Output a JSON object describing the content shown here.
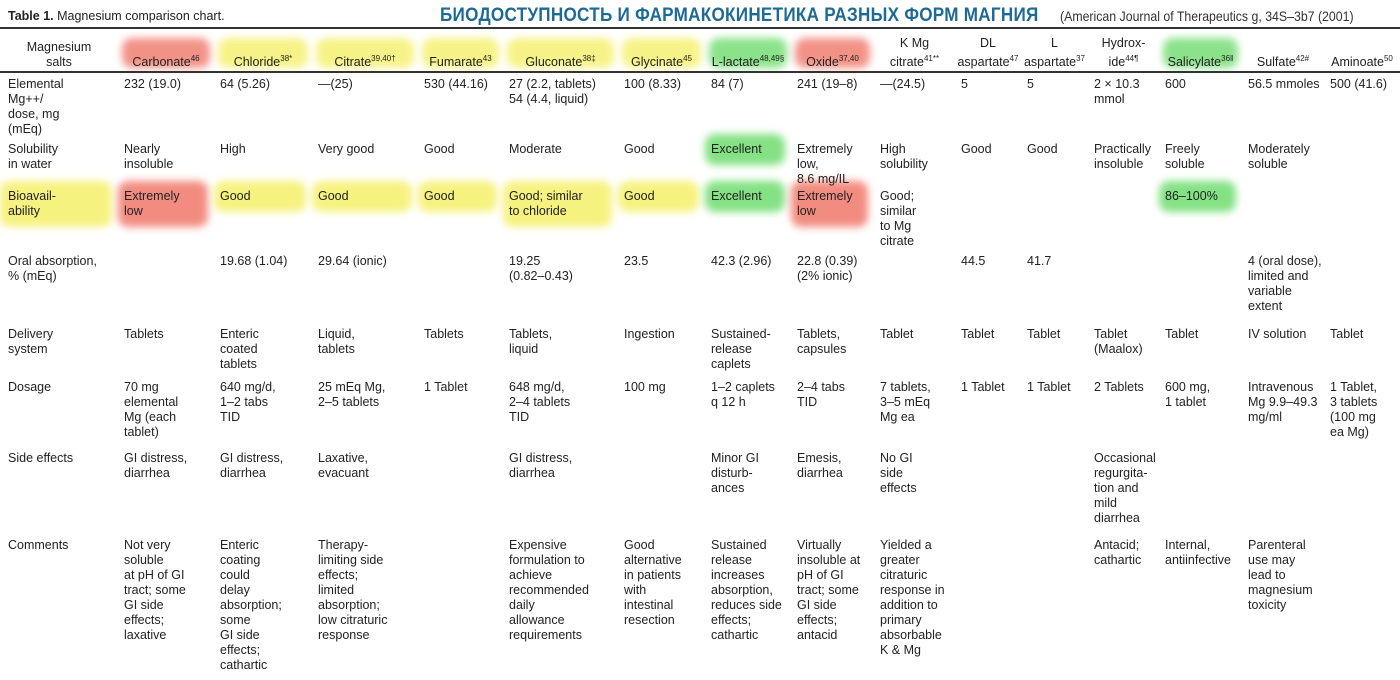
{
  "caption": {
    "label": "Table 1.",
    "text": "Magnesium comparison chart."
  },
  "banner": "БИОДОСТУПНОСТЬ И ФАРМАКОКИНЕТИКА РАЗНЫХ ФОРМ МАГНИЯ",
  "source": "(American Journal of Therapeutics g, 34S–3b7 (2001)",
  "colors": {
    "red": "#f0786a",
    "yellow": "#f5f06a",
    "green": "#6fdc6f"
  },
  "header": {
    "label": "Magnesium\nsalts",
    "columns": [
      {
        "name": "Carbonate",
        "sup": "46"
      },
      {
        "name": "Chloride",
        "sup": "38*"
      },
      {
        "name": "Citrate",
        "sup": "39,40†"
      },
      {
        "name": "Fumarate",
        "sup": "43"
      },
      {
        "name": "Gluconate",
        "sup": "38‡"
      },
      {
        "name": "Glycinate",
        "sup": "45"
      },
      {
        "name": "L-lactate",
        "sup": "48,49§"
      },
      {
        "name": "Oxide",
        "sup": "37,40"
      },
      {
        "name": "K Mg\ncitrate",
        "sup": "41**"
      },
      {
        "name": "DL\naspartate",
        "sup": "47"
      },
      {
        "name": "L\naspartate",
        "sup": "37"
      },
      {
        "name": "Hydrox-\nide",
        "sup": "44¶"
      },
      {
        "name": "Salicylate",
        "sup": "36‖"
      },
      {
        "name": "Sulfate",
        "sup": "42#"
      },
      {
        "name": "Aminoate",
        "sup": "50"
      }
    ]
  },
  "rows": [
    {
      "label": "Elemental\n  Mg++/\n  dose, mg\n  (mEq)",
      "cells": [
        "232 (19.0)",
        "64 (5.26)",
        "—(25)",
        "530 (44.16)",
        "27 (2.2, tablets)\n  54 (4.4, liquid)",
        "100 (8.33)",
        "84 (7)",
        "241 (19–8)",
        "—(24.5)",
        "5",
        "5",
        "2 × 10.3\n  mmol",
        "600",
        "56.5 mmoles",
        "500 (41.6)"
      ]
    },
    {
      "label": "Solubility\n  in water",
      "cells": [
        "Nearly\n  insoluble",
        "High",
        "Very good",
        "Good",
        "Moderate",
        "Good",
        "Excellent",
        "Extremely\n  low,\n  8.6 mg/IL",
        "High\n  solubility",
        "Good",
        "Good",
        "Practically\n  insoluble",
        "Freely\n  soluble",
        "Moderately\n  soluble",
        ""
      ]
    },
    {
      "label": "Bioavail-\n  ability",
      "cells": [
        "Extremely\n  low",
        "Good",
        "Good",
        "Good",
        "Good; similar\n  to chloride",
        "Good",
        "Excellent",
        "Extremely\n  low",
        "Good;\n  similar\n  to Mg\n  citrate",
        "",
        "",
        "",
        "86–100%",
        "",
        ""
      ]
    },
    {
      "label": "Oral absorption,\n  % (mEq)",
      "cells": [
        "",
        "19.68 (1.04)",
        "29.64 (ionic)",
        "",
        "19.25\n  (0.82–0.43)",
        "23.5",
        "42.3 (2.96)",
        "22.8 (0.39)\n  (2% ionic)",
        "",
        "44.5",
        "41.7",
        "",
        "",
        "4 (oral dose),\n  limited and\n  variable\n  extent",
        ""
      ]
    },
    {
      "label": "Delivery\n  system",
      "cells": [
        "Tablets",
        "Enteric\n  coated\n  tablets",
        "Liquid,\n  tablets",
        "Tablets",
        "Tablets,\n  liquid",
        "Ingestion",
        "Sustained-\n  release\n  caplets",
        "Tablets,\n  capsules",
        "Tablet",
        "Tablet",
        "Tablet",
        "Tablet\n  (Maalox)",
        "Tablet",
        "IV solution",
        "Tablet"
      ]
    },
    {
      "label": "Dosage",
      "cells": [
        "70 mg\n  elemental\n  Mg (each\n  tablet)",
        "640 mg/d,\n  1–2 tabs\n  TID",
        "25 mEq Mg,\n  2–5 tablets",
        "1 Tablet",
        "648 mg/d,\n  2–4 tablets\n  TID",
        "100 mg",
        "1–2 caplets\n  q 12 h",
        "2–4 tabs\n  TID",
        "7 tablets,\n  3–5 mEq\n  Mg ea",
        "1 Tablet",
        "1 Tablet",
        "2 Tablets",
        "600 mg,\n  1 tablet",
        "Intravenous\n  Mg 9.9–49.3\n  mg/ml",
        "1 Tablet,\n  3 tablets\n  (100 mg\n  ea Mg)"
      ]
    },
    {
      "label": "Side effects",
      "cells": [
        "GI distress,\n  diarrhea",
        "GI distress,\n  diarrhea",
        "Laxative,\n  evacuant",
        "",
        "GI distress,\n  diarrhea",
        "",
        "Minor GI\n  disturb-\n  ances",
        "Emesis,\n  diarrhea",
        "No GI\n  side\n  effects",
        "",
        "",
        "Occasional\n  regurgita-\n  tion and\n  mild\n  diarrhea",
        "",
        "",
        ""
      ]
    },
    {
      "label": "Comments",
      "cells": [
        "Not very\n  soluble\n  at pH of GI\n  tract; some\n  GI side\n  effects;\n  laxative",
        "Enteric\n  coating\n  could\n  delay\n  absorption;\n  some\n  GI side\n  effects;\n  cathartic",
        "Therapy-\n  limiting side\n  effects;\n  limited\n  absorption;\n  low citraturic\n  response",
        "",
        "Expensive\n  formulation to\n  achieve\n  recommended\n  daily\n  allowance\n  requirements",
        "Good\n  alternative\n  in patients\n  with\n  intestinal\n  resection",
        "Sustained\n  release\n  increases\n  absorption,\n  reduces side\n  effects;\n  cathartic",
        "Virtually\n  insoluble at\n  pH of GI\n  tract; some\n  GI side\n  effects;\n  antacid",
        "Yielded a\n  greater\n  citraturic\n  response in\n  addition to\n  primary\n  absorbable\n  K & Mg",
        "",
        "",
        "Antacid;\n  cathartic",
        "Internal,\n  antiinfective",
        "Parenteral\n  use may\n  lead to\n  magnesium\n  toxicity",
        ""
      ]
    }
  ]
}
